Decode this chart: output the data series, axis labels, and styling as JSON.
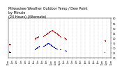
{
  "title": "Milwaukee Weather Outdoor Temp / Dew Point\nby Minute\n(24 Hours) (Alternate)",
  "title_fontsize": 3.5,
  "background_color": "#ffffff",
  "plot_bg_color": "#ffffff",
  "grid_color": "#999999",
  "temp_color": "#cc0000",
  "dew_color": "#0000cc",
  "ylim": [
    20,
    60
  ],
  "xlim": [
    0,
    1440
  ],
  "yticks": [
    20,
    25,
    30,
    35,
    40,
    45,
    50,
    55,
    60
  ],
  "ylabel_fontsize": 2.5,
  "xlabel_fontsize": 1.8,
  "marker_size": 0.5,
  "vgrid_positions": [
    60,
    120,
    180,
    240,
    300,
    360,
    420,
    480,
    540,
    600,
    660,
    720,
    780,
    840,
    900,
    960,
    1020,
    1080,
    1140,
    1200,
    1260,
    1320,
    1380
  ],
  "temp_data": [
    [
      5,
      33.5
    ],
    [
      10,
      33.8
    ],
    [
      15,
      34.0
    ],
    [
      20,
      33.6
    ],
    [
      25,
      33.9
    ],
    [
      30,
      33.7
    ],
    [
      370,
      39.2
    ],
    [
      375,
      39.5
    ],
    [
      380,
      39.8
    ],
    [
      385,
      40.0
    ],
    [
      390,
      40.2
    ],
    [
      395,
      40.5
    ],
    [
      400,
      40.7
    ],
    [
      405,
      40.4
    ],
    [
      410,
      40.8
    ],
    [
      415,
      41.0
    ],
    [
      420,
      41.2
    ],
    [
      425,
      41.5
    ],
    [
      490,
      42.0
    ],
    [
      495,
      42.3
    ],
    [
      500,
      42.5
    ],
    [
      505,
      42.8
    ],
    [
      510,
      43.0
    ],
    [
      515,
      43.3
    ],
    [
      520,
      43.5
    ],
    [
      525,
      43.8
    ],
    [
      530,
      44.0
    ],
    [
      535,
      44.2
    ],
    [
      540,
      44.5
    ],
    [
      545,
      44.8
    ],
    [
      550,
      45.0
    ],
    [
      555,
      45.2
    ],
    [
      560,
      45.5
    ],
    [
      565,
      45.7
    ],
    [
      570,
      46.0
    ],
    [
      575,
      46.2
    ],
    [
      580,
      46.5
    ],
    [
      585,
      46.7
    ],
    [
      590,
      47.0
    ],
    [
      595,
      47.2
    ],
    [
      600,
      47.5
    ],
    [
      605,
      47.3
    ],
    [
      610,
      47.6
    ],
    [
      615,
      47.8
    ],
    [
      620,
      47.5
    ],
    [
      625,
      47.3
    ],
    [
      630,
      47.1
    ],
    [
      635,
      46.8
    ],
    [
      640,
      46.5
    ],
    [
      645,
      46.3
    ],
    [
      650,
      46.0
    ],
    [
      655,
      45.7
    ],
    [
      660,
      45.5
    ],
    [
      665,
      45.2
    ],
    [
      670,
      44.9
    ],
    [
      675,
      44.6
    ],
    [
      680,
      44.3
    ],
    [
      685,
      44.0
    ],
    [
      690,
      43.7
    ],
    [
      695,
      43.4
    ],
    [
      700,
      43.1
    ],
    [
      705,
      42.8
    ],
    [
      710,
      42.5
    ],
    [
      715,
      42.2
    ],
    [
      720,
      41.9
    ],
    [
      725,
      41.6
    ],
    [
      730,
      41.3
    ],
    [
      780,
      40.5
    ],
    [
      785,
      40.2
    ],
    [
      790,
      39.9
    ],
    [
      795,
      39.6
    ],
    [
      800,
      39.3
    ],
    [
      805,
      39.0
    ],
    [
      810,
      38.7
    ],
    [
      1350,
      37.5
    ],
    [
      1355,
      37.2
    ],
    [
      1360,
      36.9
    ]
  ],
  "dew_data": [
    [
      5,
      26.0
    ],
    [
      10,
      25.8
    ],
    [
      15,
      25.5
    ],
    [
      20,
      25.7
    ],
    [
      25,
      25.4
    ],
    [
      30,
      25.2
    ],
    [
      370,
      28.5
    ],
    [
      375,
      28.8
    ],
    [
      380,
      29.0
    ],
    [
      385,
      29.3
    ],
    [
      390,
      29.5
    ],
    [
      395,
      29.8
    ],
    [
      400,
      30.0
    ],
    [
      405,
      30.2
    ],
    [
      410,
      30.5
    ],
    [
      415,
      30.7
    ],
    [
      420,
      30.9
    ],
    [
      425,
      31.2
    ],
    [
      430,
      31.5
    ],
    [
      435,
      31.7
    ],
    [
      490,
      31.8
    ],
    [
      495,
      32.0
    ],
    [
      500,
      32.2
    ],
    [
      505,
      32.5
    ],
    [
      510,
      32.7
    ],
    [
      515,
      32.9
    ],
    [
      520,
      33.1
    ],
    [
      525,
      33.3
    ],
    [
      530,
      33.5
    ],
    [
      535,
      33.7
    ],
    [
      540,
      34.0
    ],
    [
      545,
      34.2
    ],
    [
      550,
      34.4
    ],
    [
      555,
      34.6
    ],
    [
      560,
      34.8
    ],
    [
      565,
      34.5
    ],
    [
      570,
      34.2
    ],
    [
      575,
      34.0
    ],
    [
      580,
      33.8
    ],
    [
      585,
      33.5
    ],
    [
      590,
      33.2
    ],
    [
      595,
      33.0
    ],
    [
      600,
      32.8
    ],
    [
      605,
      32.5
    ],
    [
      610,
      32.2
    ],
    [
      615,
      32.0
    ],
    [
      620,
      31.8
    ],
    [
      625,
      31.5
    ],
    [
      630,
      31.2
    ],
    [
      635,
      31.0
    ],
    [
      640,
      30.8
    ],
    [
      645,
      30.5
    ],
    [
      650,
      30.2
    ],
    [
      655,
      30.0
    ],
    [
      660,
      29.8
    ],
    [
      665,
      29.5
    ],
    [
      670,
      29.2
    ],
    [
      675,
      29.0
    ],
    [
      680,
      28.7
    ],
    [
      720,
      28.5
    ],
    [
      725,
      28.2
    ],
    [
      730,
      28.0
    ],
    [
      800,
      27.5
    ],
    [
      805,
      27.2
    ],
    [
      810,
      26.9
    ],
    [
      1350,
      25.5
    ]
  ]
}
